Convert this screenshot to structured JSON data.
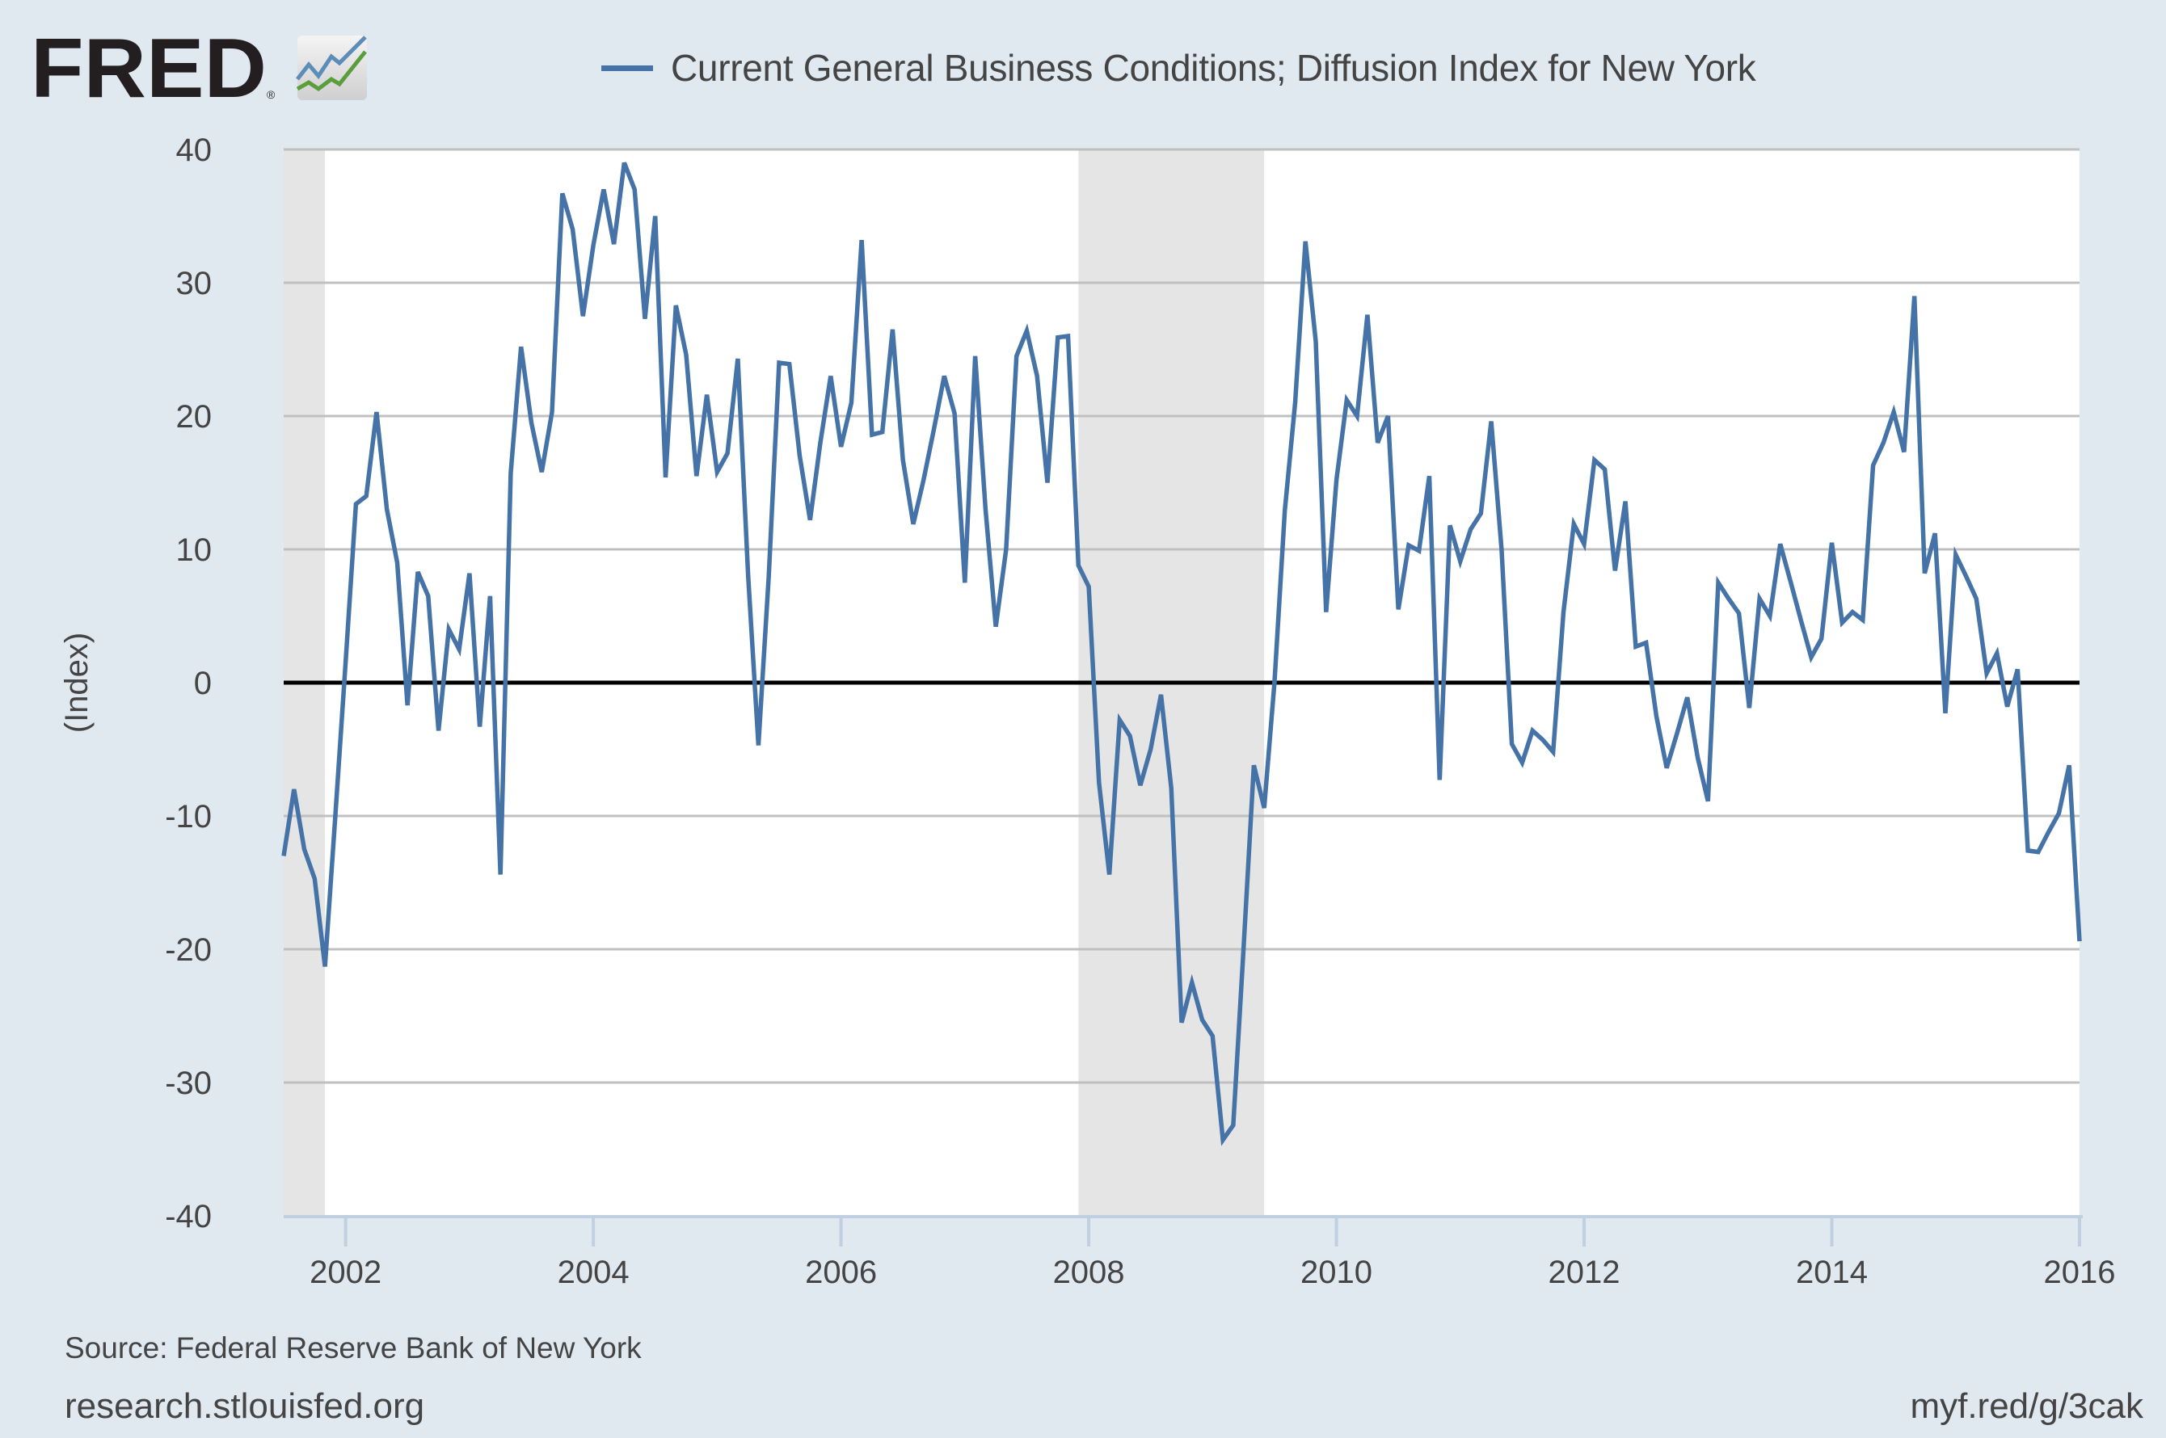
{
  "logo": {
    "text": "FRED",
    "registered_mark": "®",
    "icon": "chart-trend-icon",
    "colors": {
      "text": "#231f20",
      "line1": "#5b8db8",
      "line2": "#5a9e3c"
    }
  },
  "footer": {
    "source": "Source: Federal Reserve Bank of New York",
    "site": "research.stlouisfed.org",
    "shortlink": "myf.red/g/3cak"
  },
  "chart_data": {
    "type": "line",
    "title": "",
    "legend": [
      {
        "label": "Current General Business Conditions; Diffusion Index for New York",
        "color": "#4572a7"
      }
    ],
    "legend_position": "top",
    "xlabel": "",
    "ylabel": "(Index)",
    "ylim": [
      -40,
      40
    ],
    "xlim": [
      "2001-07",
      "2016-01"
    ],
    "y_ticks": [
      "40",
      "30",
      "20",
      "10",
      "0",
      "-10",
      "-20",
      "-30",
      "-40"
    ],
    "x_ticks": [
      "2002",
      "2004",
      "2006",
      "2008",
      "2010",
      "2012",
      "2014",
      "2016"
    ],
    "grid": true,
    "zero_line": true,
    "recessions": [
      {
        "start": "2001-07",
        "end": "2001-11"
      },
      {
        "start": "2007-12",
        "end": "2009-06"
      }
    ],
    "colors": {
      "series": "#4572a7",
      "grid": "#c0c0c0",
      "zero": "#000000",
      "recession": "#e5e5e5",
      "axis": "#c0d0e0",
      "plot_bg": "#ffffff"
    },
    "series": [
      {
        "name": "Current General Business Conditions; Diffusion Index for New York",
        "start": "2001-07",
        "frequency": "monthly",
        "values": [
          -13,
          -8,
          -12.5,
          -14.7,
          -21.3,
          -10,
          1.5,
          13.4,
          14,
          20.3,
          13,
          9,
          -1.7,
          8.3,
          6.5,
          -3.6,
          4,
          2.5,
          8.2,
          -3.3,
          6.5,
          -14.4,
          15.7,
          25.2,
          19.5,
          15.8,
          20.3,
          36.7,
          34,
          27.5,
          32.8,
          37,
          32.9,
          39,
          37,
          27.3,
          35,
          15.4,
          28.3,
          24.6,
          15.5,
          21.6,
          15.8,
          17.2,
          24.3,
          8,
          -4.7,
          8,
          24,
          23.9,
          17,
          12.2,
          18,
          23,
          17.7,
          21,
          33.2,
          18.6,
          18.8,
          26.5,
          16.7,
          11.9,
          15.2,
          19,
          23,
          20.2,
          7.5,
          24.5,
          13,
          4.2,
          10,
          24.5,
          26.4,
          23,
          15,
          25.9,
          26,
          8.8,
          7.2,
          -7.5,
          -14.4,
          -2.8,
          -4,
          -7.7,
          -5,
          -0.9,
          -7.9,
          -25.5,
          -22.5,
          -25.3,
          -26.5,
          -34.3,
          -33.2,
          -20,
          -6.2,
          -9.4,
          0,
          12.9,
          21,
          33.1,
          25.6,
          5.3,
          15.2,
          21.2,
          20,
          27.6,
          18,
          20,
          5.5,
          10.3,
          9.9,
          15.5,
          -7.3,
          11.8,
          9.1,
          11.5,
          12.7,
          19.6,
          10,
          -4.6,
          -6,
          -3.6,
          -4.3,
          -5.2,
          5.3,
          11.9,
          10.4,
          16.7,
          16,
          8.4,
          13.6,
          2.7,
          3,
          -2.5,
          -6.4,
          -3.8,
          -1.1,
          -5.6,
          -8.9,
          7.5,
          6.3,
          5.2,
          -1.9,
          6.3,
          5,
          10.4,
          7.6,
          4.7,
          1.9,
          3.3,
          10.5,
          4.5,
          5.3,
          4.7,
          16.3,
          18,
          20.3,
          17.3,
          29,
          8.2,
          11.2,
          -2.3,
          9.6,
          8,
          6.3,
          0.7,
          2.2,
          -1.8,
          1,
          -12.6,
          -12.7,
          -11.2,
          -9.8,
          -6.2,
          -19.4
        ]
      }
    ]
  }
}
